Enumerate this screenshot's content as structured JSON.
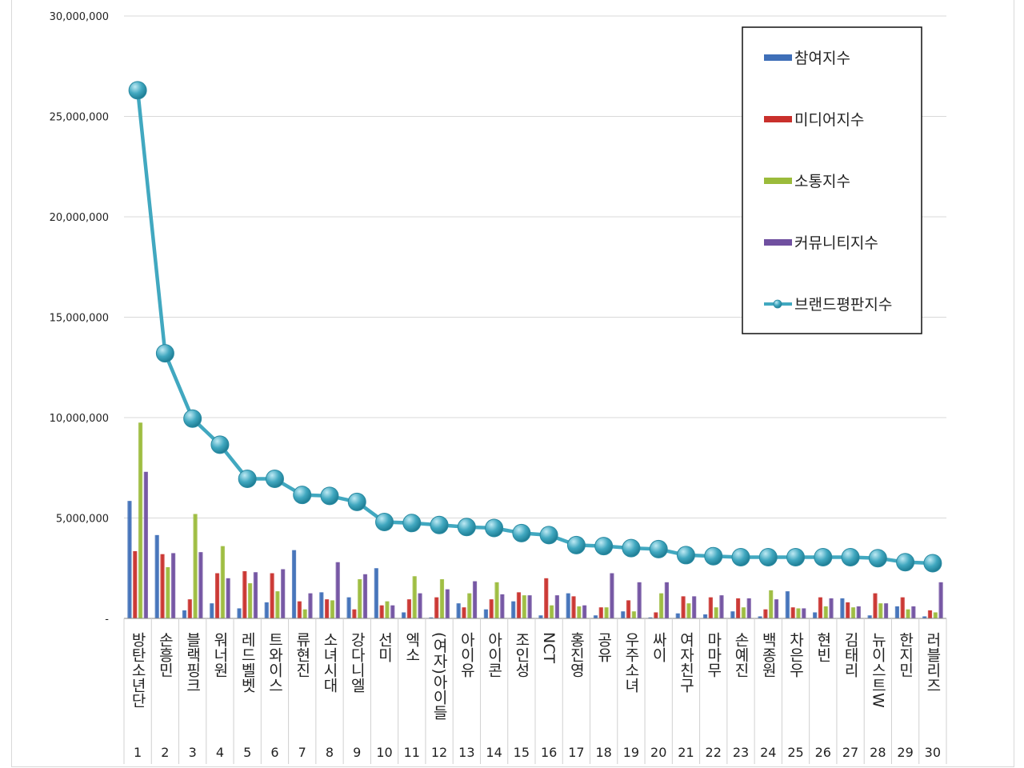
{
  "chart_data": {
    "type": "bar",
    "y_ticks": [
      "-",
      "5,000,000",
      "10,000,000",
      "15,000,000",
      "20,000,000",
      "25,000,000",
      "30,000,000"
    ],
    "ylim": [
      0,
      30000000
    ],
    "grid": true,
    "legend_position": "top-right",
    "ranks": [
      "1",
      "2",
      "3",
      "4",
      "5",
      "6",
      "7",
      "8",
      "9",
      "10",
      "11",
      "12",
      "13",
      "14",
      "15",
      "16",
      "17",
      "18",
      "19",
      "20",
      "21",
      "22",
      "23",
      "24",
      "25",
      "26",
      "27",
      "28",
      "29",
      "30"
    ],
    "categories": [
      "방탄소년단",
      "손흥민",
      "블랙핑크",
      "워너원",
      "레드벨벳",
      "트와이스",
      "류현진",
      "소녀시대",
      "강다니엘",
      "선미",
      "엑소",
      "(여자)아이들",
      "아이유",
      "아이콘",
      "조인성",
      "NCT",
      "홍진영",
      "공유",
      "우주소녀",
      "싸이",
      "여자친구",
      "마마무",
      "손예진",
      "백종원",
      "차은우",
      "현빈",
      "김태리",
      "뉴이스트W",
      "한지민",
      "러블리즈"
    ],
    "series": [
      {
        "name": "참여지수",
        "color": "#3f6fb8",
        "values": [
          5850000,
          4150000,
          400000,
          750000,
          500000,
          800000,
          3400000,
          1300000,
          1050000,
          2500000,
          300000,
          50000,
          750000,
          450000,
          850000,
          150000,
          1250000,
          150000,
          350000,
          50000,
          250000,
          200000,
          350000,
          100000,
          1350000,
          300000,
          1000000,
          150000,
          600000,
          100000
        ]
      },
      {
        "name": "미디어지수",
        "color": "#c9302c",
        "values": [
          3350000,
          3200000,
          950000,
          2250000,
          2350000,
          2250000,
          850000,
          950000,
          450000,
          650000,
          950000,
          1050000,
          550000,
          950000,
          1300000,
          2000000,
          1100000,
          550000,
          900000,
          300000,
          1100000,
          1050000,
          1000000,
          450000,
          550000,
          1050000,
          800000,
          1250000,
          1050000,
          400000
        ]
      },
      {
        "name": "소통지수",
        "color": "#9bbb3b",
        "values": [
          9750000,
          2550000,
          5200000,
          3600000,
          1750000,
          1350000,
          450000,
          900000,
          1950000,
          850000,
          2100000,
          1950000,
          1250000,
          1800000,
          1150000,
          650000,
          600000,
          550000,
          350000,
          1250000,
          750000,
          550000,
          550000,
          1400000,
          500000,
          600000,
          550000,
          750000,
          450000,
          300000
        ]
      },
      {
        "name": "커뮤니티지수",
        "color": "#7050a0",
        "values": [
          7300000,
          3250000,
          3300000,
          2000000,
          2300000,
          2450000,
          1250000,
          2800000,
          2200000,
          650000,
          1250000,
          1450000,
          1850000,
          1200000,
          1150000,
          1150000,
          650000,
          2250000,
          1800000,
          1800000,
          1100000,
          1150000,
          1000000,
          950000,
          500000,
          1000000,
          600000,
          750000,
          600000,
          1800000
        ]
      },
      {
        "name": "브랜드평판지수",
        "color": "#41a8c0",
        "type": "line",
        "values": [
          26300000,
          13200000,
          9950000,
          8650000,
          6950000,
          6950000,
          6150000,
          6100000,
          5800000,
          4800000,
          4750000,
          4650000,
          4550000,
          4500000,
          4250000,
          4150000,
          3650000,
          3600000,
          3500000,
          3450000,
          3150000,
          3100000,
          3050000,
          3050000,
          3050000,
          3050000,
          3050000,
          3000000,
          2800000,
          2750000
        ]
      }
    ]
  }
}
